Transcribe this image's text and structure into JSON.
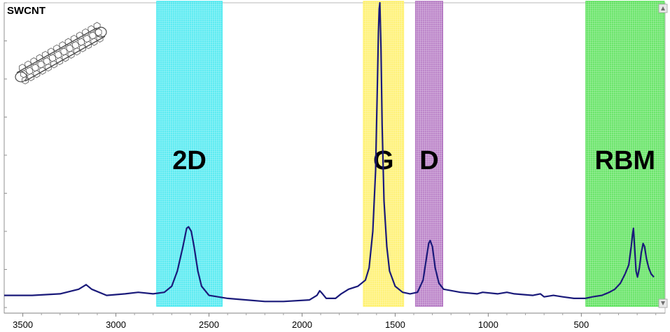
{
  "chart_data": {
    "type": "line",
    "title": "SWCNT",
    "xlabel": "",
    "ylabel": "",
    "x_reversed": true,
    "xlim": [
      3600,
      50
    ],
    "ylim": [
      0,
      1.0
    ],
    "x_ticks": [
      3500,
      3000,
      2500,
      2000,
      1500,
      1000,
      500
    ],
    "x_tick_labels": [
      "3500",
      "3000",
      "2500",
      "2000",
      "1500",
      "1000",
      "500"
    ],
    "grid": false,
    "bands": [
      {
        "label": "2D",
        "x_from": 2780,
        "x_to": 2430,
        "color": "#40e8f0"
      },
      {
        "label": "G",
        "x_from": 1670,
        "x_to": 1455,
        "color": "#fff060"
      },
      {
        "label": "D",
        "x_from": 1390,
        "x_to": 1245,
        "color": "#b070c0"
      },
      {
        "label": "RBM",
        "x_from": 475,
        "x_to": 55,
        "color": "#50e050"
      }
    ],
    "series": [
      {
        "color": "#1a1a7a",
        "points": [
          [
            3600,
            0.04
          ],
          [
            3450,
            0.04
          ],
          [
            3300,
            0.045
          ],
          [
            3200,
            0.06
          ],
          [
            3160,
            0.075
          ],
          [
            3130,
            0.06
          ],
          [
            3050,
            0.04
          ],
          [
            2950,
            0.045
          ],
          [
            2880,
            0.05
          ],
          [
            2800,
            0.045
          ],
          [
            2740,
            0.05
          ],
          [
            2700,
            0.07
          ],
          [
            2670,
            0.12
          ],
          [
            2640,
            0.2
          ],
          [
            2620,
            0.26
          ],
          [
            2610,
            0.265
          ],
          [
            2595,
            0.25
          ],
          [
            2580,
            0.2
          ],
          [
            2560,
            0.12
          ],
          [
            2540,
            0.07
          ],
          [
            2500,
            0.04
          ],
          [
            2400,
            0.03
          ],
          [
            2300,
            0.025
          ],
          [
            2200,
            0.02
          ],
          [
            2100,
            0.02
          ],
          [
            1960,
            0.025
          ],
          [
            1920,
            0.04
          ],
          [
            1905,
            0.055
          ],
          [
            1890,
            0.045
          ],
          [
            1870,
            0.03
          ],
          [
            1820,
            0.03
          ],
          [
            1790,
            0.045
          ],
          [
            1750,
            0.06
          ],
          [
            1700,
            0.07
          ],
          [
            1660,
            0.09
          ],
          [
            1640,
            0.13
          ],
          [
            1620,
            0.25
          ],
          [
            1605,
            0.45
          ],
          [
            1595,
            0.75
          ],
          [
            1590,
            0.9
          ],
          [
            1586,
            0.98
          ],
          [
            1582,
            1.0
          ],
          [
            1576,
            0.85
          ],
          [
            1570,
            0.6
          ],
          [
            1560,
            0.35
          ],
          [
            1545,
            0.2
          ],
          [
            1530,
            0.12
          ],
          [
            1500,
            0.07
          ],
          [
            1460,
            0.05
          ],
          [
            1420,
            0.045
          ],
          [
            1380,
            0.05
          ],
          [
            1350,
            0.09
          ],
          [
            1330,
            0.17
          ],
          [
            1320,
            0.21
          ],
          [
            1312,
            0.22
          ],
          [
            1300,
            0.2
          ],
          [
            1285,
            0.13
          ],
          [
            1265,
            0.08
          ],
          [
            1240,
            0.06
          ],
          [
            1150,
            0.05
          ],
          [
            1060,
            0.045
          ],
          [
            1030,
            0.05
          ],
          [
            950,
            0.045
          ],
          [
            900,
            0.05
          ],
          [
            860,
            0.045
          ],
          [
            760,
            0.04
          ],
          [
            720,
            0.045
          ],
          [
            700,
            0.035
          ],
          [
            650,
            0.04
          ],
          [
            600,
            0.035
          ],
          [
            540,
            0.03
          ],
          [
            480,
            0.03
          ],
          [
            440,
            0.035
          ],
          [
            390,
            0.04
          ],
          [
            350,
            0.05
          ],
          [
            320,
            0.06
          ],
          [
            290,
            0.08
          ],
          [
            265,
            0.11
          ],
          [
            245,
            0.14
          ],
          [
            232,
            0.2
          ],
          [
            225,
            0.24
          ],
          [
            220,
            0.26
          ],
          [
            214,
            0.2
          ],
          [
            206,
            0.12
          ],
          [
            198,
            0.1
          ],
          [
            188,
            0.13
          ],
          [
            178,
            0.18
          ],
          [
            168,
            0.21
          ],
          [
            160,
            0.2
          ],
          [
            150,
            0.16
          ],
          [
            138,
            0.13
          ],
          [
            125,
            0.11
          ],
          [
            110,
            0.1
          ]
        ]
      }
    ]
  },
  "inset": {
    "label": "SWCNT",
    "icon": "carbon-nanotube-icon"
  }
}
